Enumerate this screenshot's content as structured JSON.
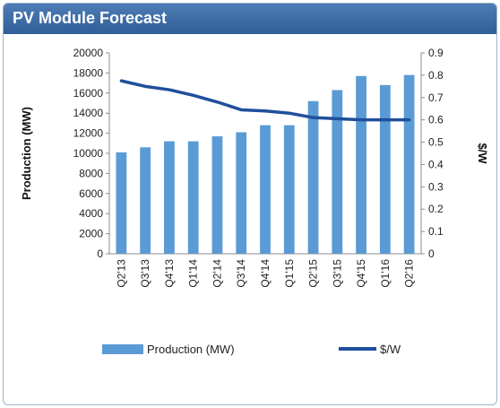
{
  "chart_data": {
    "type": "bar",
    "title": "PV Module Forecast",
    "categories": [
      "Q2'13",
      "Q3'13",
      "Q4'13",
      "Q1'14",
      "Q2'14",
      "Q3'14",
      "Q4'14",
      "Q1'15",
      "Q2'15",
      "Q3'15",
      "Q4'15",
      "Q1'16",
      "Q2'16"
    ],
    "series": [
      {
        "name": "Production (MW)",
        "type": "bar",
        "axis": "left",
        "color": "#5b9bd5",
        "values": [
          10100,
          10600,
          11200,
          11200,
          11700,
          12100,
          12800,
          12800,
          15200,
          16300,
          17700,
          16800,
          17800
        ]
      },
      {
        "name": "$/W",
        "type": "line",
        "axis": "right",
        "color": "#1f4f9c",
        "values": [
          0.775,
          0.75,
          0.735,
          0.71,
          0.68,
          0.645,
          0.64,
          0.63,
          0.61,
          0.605,
          0.6,
          0.6,
          0.6
        ]
      }
    ],
    "ylabel": "Production (MW)",
    "ylabel_right": "$/W",
    "ylim": [
      0,
      20000
    ],
    "yticks": [
      0,
      2000,
      4000,
      6000,
      8000,
      10000,
      12000,
      14000,
      16000,
      18000,
      20000
    ],
    "ylim_right": [
      0,
      0.9
    ],
    "yticks_right": [
      "0",
      "0.1",
      "0.2",
      "0.3",
      "0.4",
      "0.5",
      "0.6",
      "0.7",
      "0.8",
      "0.9"
    ],
    "legend_position": "bottom",
    "grid": false
  }
}
